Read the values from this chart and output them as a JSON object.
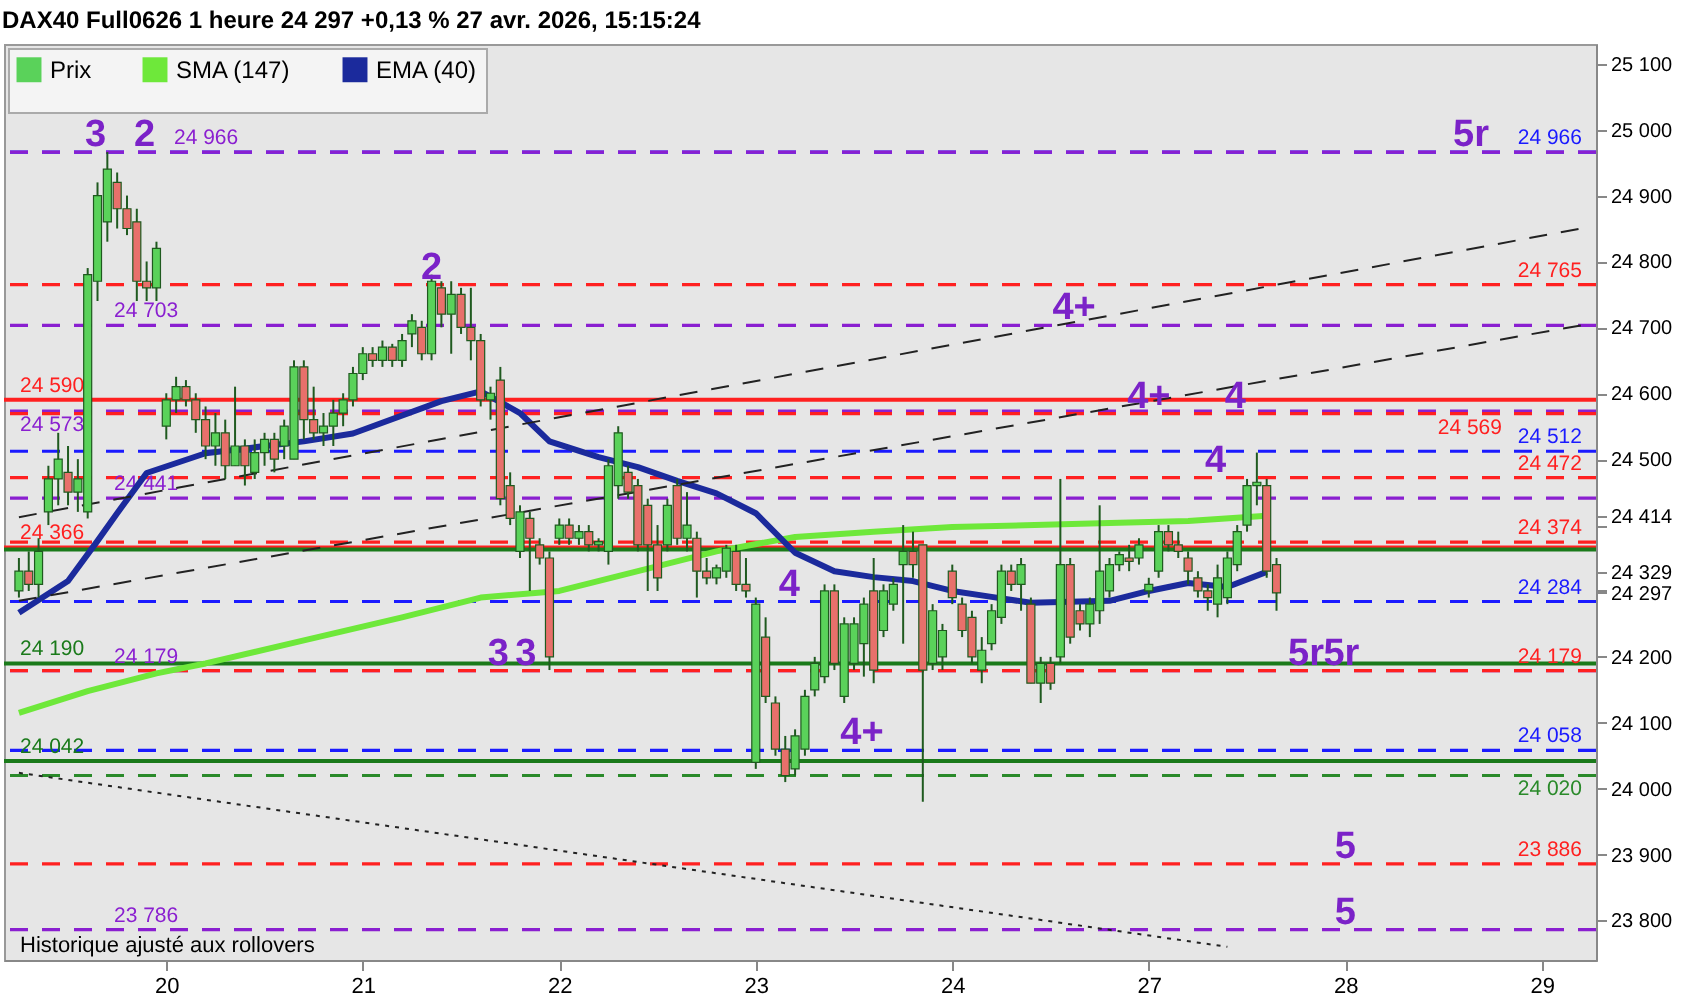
{
  "chart_data": {
    "type": "candlestick",
    "title": "DAX40 Full0626 1 heure 24 297 +0,13 % 27 avr. 2026, 15:15:24",
    "ylim": [
      23740,
      25130
    ],
    "categories": [
      null,
      null,
      null,
      null,
      null,
      null,
      null,
      null,
      null,
      null,
      null,
      null,
      null,
      null,
      null,
      "20",
      null,
      null,
      null,
      null,
      null,
      null,
      null,
      null,
      null,
      null,
      null,
      null,
      null,
      null,
      null,
      null,
      null,
      null,
      null,
      "21",
      null,
      null,
      null,
      null,
      null,
      null,
      null,
      null,
      null,
      null,
      null,
      null,
      null,
      null,
      null,
      null,
      null,
      null,
      null,
      "22",
      null,
      null,
      null,
      null,
      null,
      null,
      null,
      null,
      null,
      null,
      null,
      null,
      null,
      null,
      null,
      null,
      null,
      null,
      null,
      "23",
      null,
      null,
      null,
      null,
      null,
      null,
      null,
      null,
      null,
      null,
      null,
      null,
      null,
      null,
      null,
      null,
      null,
      null,
      null,
      "24",
      null,
      null,
      null,
      null,
      null,
      null,
      null,
      null,
      null,
      null,
      null,
      null,
      null,
      null,
      null,
      null,
      null,
      null,
      null,
      "27",
      null,
      null,
      null,
      null,
      null,
      null,
      null,
      null,
      null,
      null,
      null,
      null,
      null,
      null,
      null,
      null,
      null,
      null,
      null,
      "28",
      null,
      null,
      null,
      null,
      null,
      null,
      null,
      null,
      null,
      null,
      null,
      null,
      null,
      null,
      null,
      null,
      null,
      null,
      null,
      "29",
      null,
      null,
      null,
      null
    ],
    "yticks": [
      {
        "value": 23800,
        "label": "23 800"
      },
      {
        "value": 23900,
        "label": "23 900"
      },
      {
        "value": 24000,
        "label": "24 000"
      },
      {
        "value": 24100,
        "label": "24 100"
      },
      {
        "value": 24200,
        "label": "24 200"
      },
      {
        "value": 24297,
        "label": "24 297"
      },
      {
        "value": 24300,
        "label": null
      },
      {
        "value": 24329,
        "label": "24 329"
      },
      {
        "value": 24400,
        "label": null
      },
      {
        "value": 24414,
        "label": "24 414"
      },
      {
        "value": 24500,
        "label": "24 500"
      },
      {
        "value": 24600,
        "label": "24 600"
      },
      {
        "value": 24700,
        "label": "24 700"
      },
      {
        "value": 24800,
        "label": "24 800"
      },
      {
        "value": 24900,
        "label": "24 900"
      },
      {
        "value": 25000,
        "label": "25 000"
      },
      {
        "value": 25100,
        "label": "25 100"
      }
    ],
    "grid": false,
    "legend": "top left",
    "series": [
      {
        "name": "Prix",
        "colors": [
          "#5ad25a",
          "#e8706b",
          "#5ad25a",
          "#5ad25a",
          "#5ad25a",
          "#e8706b",
          "#5ad25a",
          "#5ad25a",
          "#5ad25a",
          "#5ad25a",
          "#e8706b",
          "#e8706b",
          "#e8706b",
          "#e8706b",
          "#5ad25a",
          "#5ad25a",
          "#5ad25a",
          "#e8706b",
          "#e8706b",
          "#e8706b",
          "#5ad25a",
          "#e8706b",
          "#5ad25a",
          "#e8706b",
          "#5ad25a",
          "#5ad25a",
          "#e8706b",
          "#5ad25a",
          "#5ad25a",
          "#e8706b",
          "#e8706b",
          "#5ad25a",
          "#5ad25a",
          "#5ad25a",
          "#5ad25a",
          "#5ad25a",
          "#e8706b",
          "#5ad25a",
          "#e8706b",
          "#5ad25a",
          "#5ad25a",
          "#e8706b",
          "#5ad25a",
          "#e8706b",
          "#5ad25a",
          "#e8706b",
          "#e8706b",
          "#e8706b",
          "#5ad25a",
          "#e8706b",
          "#e8706b",
          "#5ad25a",
          "#e8706b",
          "#e8706b",
          "#e8706b",
          "#5ad25a",
          "#e8706b",
          "#5ad25a",
          "#e8706b",
          "#5ad25a",
          "#5ad25a",
          "#5ad25a",
          "#e8706b",
          "#e8706b",
          "#e8706b",
          "#e8706b",
          "#5ad25a",
          "#e8706b",
          "#5ad25a",
          "#e8706b",
          "#e8706b",
          "#5ad25a",
          "#5ad25a",
          "#e8706b",
          "#e8706b",
          "#5ad25a",
          "#e8706b",
          "#e8706b",
          "#e8706b",
          "#5ad25a",
          "#5ad25a",
          "#5ad25a",
          "#5ad25a",
          "#e8706b",
          "#5ad25a",
          "#5ad25a",
          "#5ad25a",
          "#e8706b",
          "#5ad25a",
          "#5ad25a",
          "#5ad25a",
          "#e8706b",
          "#e8706b",
          "#5ad25a",
          "#5ad25a",
          "#e8706b",
          "#e8706b",
          "#e8706b",
          "#5ad25a",
          "#5ad25a",
          "#5ad25a",
          "#e8706b",
          "#5ad25a",
          "#e8706b",
          "#5ad25a",
          "#e8706b",
          "#5ad25a",
          "#e8706b",
          "#e8706b",
          "#5ad25a",
          "#5ad25a",
          "#5ad25a",
          "#5ad25a",
          "#e8706b",
          "#5ad25a",
          "#5ad25a",
          "#5ad25a",
          "#e8706b",
          "#e8706b",
          "#e8706b",
          "#e8706b",
          "#e8706b",
          "#5ad25a",
          "#5ad25a",
          "#5ad25a",
          "#5ad25a",
          "#5ad25a",
          "#e8706b",
          "#e8706b",
          null,
          null,
          null,
          null,
          null,
          null,
          null,
          null,
          null,
          null,
          null,
          null,
          null,
          null,
          null,
          null,
          null,
          null,
          null,
          null,
          null,
          null,
          null,
          null,
          null,
          null,
          null,
          null,
          null,
          null,
          null
        ],
        "ohlc": [
          [
            24300,
            24350,
            24290,
            24330
          ],
          [
            24330,
            24360,
            24300,
            24310
          ],
          [
            24310,
            24380,
            24290,
            24360
          ],
          [
            24420,
            24490,
            24400,
            24470
          ],
          [
            24470,
            24540,
            24430,
            24500
          ],
          [
            24480,
            24520,
            24430,
            24450
          ],
          [
            24450,
            24500,
            24420,
            24470
          ],
          [
            24420,
            24790,
            24410,
            24780
          ],
          [
            24770,
            24920,
            24740,
            24900
          ],
          [
            24860,
            24966,
            24830,
            24940
          ],
          [
            24920,
            24935,
            24850,
            24880
          ],
          [
            24880,
            24900,
            24840,
            24850
          ],
          [
            24860,
            24880,
            24740,
            24770
          ],
          [
            24770,
            24800,
            24740,
            24760
          ],
          [
            24760,
            24830,
            24740,
            24820
          ],
          [
            24550,
            24600,
            24530,
            24590
          ],
          [
            24590,
            24625,
            24570,
            24610
          ],
          [
            24610,
            24620,
            24580,
            24590
          ],
          [
            24590,
            24600,
            24540,
            24560
          ],
          [
            24560,
            24580,
            24500,
            24520
          ],
          [
            24520,
            24570,
            24490,
            24540
          ],
          [
            24540,
            24560,
            24470,
            24490
          ],
          [
            24490,
            24610,
            24490,
            24520
          ],
          [
            24520,
            24530,
            24460,
            24490
          ],
          [
            24480,
            24530,
            24470,
            24510
          ],
          [
            24510,
            24540,
            24490,
            24530
          ],
          [
            24530,
            24540,
            24480,
            24500
          ],
          [
            24520,
            24560,
            24500,
            24550
          ],
          [
            24500,
            24650,
            24500,
            24640
          ],
          [
            24640,
            24650,
            24530,
            24560
          ],
          [
            24560,
            24610,
            24530,
            24540
          ],
          [
            24540,
            24570,
            24520,
            24550
          ],
          [
            24550,
            24590,
            24520,
            24570
          ],
          [
            24570,
            24600,
            24550,
            24590
          ],
          [
            24590,
            24640,
            24580,
            24630
          ],
          [
            24630,
            24670,
            24620,
            24660
          ],
          [
            24660,
            24670,
            24640,
            24650
          ],
          [
            24650,
            24680,
            24640,
            24670
          ],
          [
            24670,
            24675,
            24640,
            24650
          ],
          [
            24650,
            24690,
            24640,
            24680
          ],
          [
            24690,
            24720,
            24670,
            24710
          ],
          [
            24700,
            24710,
            24650,
            24660
          ],
          [
            24660,
            24780,
            24650,
            24770
          ],
          [
            24760,
            24770,
            24700,
            24720
          ],
          [
            24720,
            24770,
            24660,
            24750
          ],
          [
            24750,
            24760,
            24690,
            24700
          ],
          [
            24700,
            24760,
            24650,
            24680
          ],
          [
            24680,
            24690,
            24580,
            24590
          ],
          [
            24590,
            24610,
            24560,
            24600
          ],
          [
            24620,
            24640,
            24430,
            24440
          ],
          [
            24460,
            24480,
            24400,
            24410
          ],
          [
            24360,
            24430,
            24350,
            24420
          ],
          [
            24410,
            24420,
            24300,
            24380
          ],
          [
            24370,
            24380,
            24340,
            24350
          ],
          [
            24350,
            24360,
            24180,
            24200
          ],
          [
            24380,
            24410,
            24370,
            24400
          ],
          [
            24400,
            24410,
            24370,
            24380
          ],
          [
            24380,
            24400,
            24370,
            24390
          ],
          [
            24390,
            24400,
            24360,
            24370
          ],
          [
            24370,
            24380,
            24360,
            24375
          ],
          [
            24360,
            24500,
            24340,
            24490
          ],
          [
            24460,
            24550,
            24440,
            24540
          ],
          [
            24480,
            24490,
            24440,
            24450
          ],
          [
            24460,
            24470,
            24360,
            24370
          ],
          [
            24430,
            24440,
            24300,
            24370
          ],
          [
            24370,
            24400,
            24300,
            24320
          ],
          [
            24370,
            24440,
            24360,
            24430
          ],
          [
            24460,
            24470,
            24370,
            24380
          ],
          [
            24380,
            24450,
            24360,
            24400
          ],
          [
            24380,
            24390,
            24290,
            24330
          ],
          [
            24330,
            24350,
            24310,
            24320
          ],
          [
            24320,
            24340,
            24310,
            24335
          ],
          [
            24330,
            24370,
            24320,
            24365
          ],
          [
            24360,
            24370,
            24300,
            24310
          ],
          [
            24310,
            24350,
            24290,
            24300
          ],
          [
            24040,
            24290,
            24030,
            24280
          ],
          [
            24230,
            24260,
            24130,
            24140
          ],
          [
            24130,
            24140,
            24050,
            24060
          ],
          [
            24060,
            24080,
            24010,
            24020
          ],
          [
            24030,
            24090,
            24020,
            24080
          ],
          [
            24060,
            24150,
            24050,
            24140
          ],
          [
            24150,
            24200,
            24140,
            24190
          ],
          [
            24170,
            24310,
            24160,
            24300
          ],
          [
            24300,
            24310,
            24180,
            24190
          ],
          [
            24140,
            24260,
            24130,
            24250
          ],
          [
            24190,
            24260,
            24180,
            24250
          ],
          [
            24220,
            24290,
            24170,
            24280
          ],
          [
            24300,
            24350,
            24160,
            24180
          ],
          [
            24240,
            24310,
            24230,
            24300
          ],
          [
            24280,
            24320,
            24270,
            24310
          ],
          [
            24340,
            24400,
            24220,
            24360
          ],
          [
            24360,
            24390,
            24320,
            24340
          ],
          [
            24370,
            24370,
            23980,
            24180
          ],
          [
            24190,
            24280,
            24180,
            24270
          ],
          [
            24200,
            24250,
            24180,
            24240
          ],
          [
            24330,
            24340,
            24280,
            24290
          ],
          [
            24280,
            24290,
            24230,
            24240
          ],
          [
            24260,
            24270,
            24190,
            24200
          ],
          [
            24180,
            24230,
            24160,
            24210
          ],
          [
            24220,
            24280,
            24210,
            24270
          ],
          [
            24260,
            24340,
            24250,
            24330
          ],
          [
            24330,
            24340,
            24300,
            24310
          ],
          [
            24310,
            24350,
            24270,
            24340
          ],
          [
            24280,
            24290,
            24160,
            24160
          ],
          [
            24160,
            24200,
            24130,
            24190
          ],
          [
            24190,
            24200,
            24150,
            24160
          ],
          [
            24200,
            24470,
            24190,
            24340
          ],
          [
            24340,
            24350,
            24220,
            24230
          ],
          [
            24270,
            24280,
            24240,
            24250
          ],
          [
            24250,
            24290,
            24230,
            24280
          ],
          [
            24270,
            24430,
            24250,
            24330
          ],
          [
            24300,
            24350,
            24290,
            24340
          ],
          [
            24340,
            24360,
            24330,
            24355
          ],
          [
            24350,
            24370,
            24330,
            24345
          ],
          [
            24350,
            24380,
            24340,
            24370
          ],
          [
            24300,
            24320,
            24290,
            24310
          ],
          [
            24330,
            24400,
            24320,
            24390
          ],
          [
            24390,
            24400,
            24360,
            24370
          ],
          [
            24370,
            24390,
            24350,
            24360
          ],
          [
            24350,
            24360,
            24310,
            24330
          ],
          [
            24320,
            24330,
            24290,
            24300
          ],
          [
            24300,
            24310,
            24270,
            24290
          ],
          [
            24280,
            24340,
            24260,
            24320
          ],
          [
            24290,
            24360,
            24280,
            24350
          ],
          [
            24340,
            24400,
            24330,
            24390
          ],
          [
            24400,
            24470,
            24390,
            24460
          ],
          [
            24460,
            24510,
            24430,
            24465
          ],
          [
            24460,
            24470,
            24320,
            24330
          ],
          [
            24340,
            24350,
            24270,
            24297
          ],
          null,
          null,
          null,
          null,
          null,
          null,
          null,
          null,
          null,
          null,
          null,
          null,
          null,
          null,
          null,
          null,
          null,
          null,
          null,
          null,
          null,
          null,
          null,
          null,
          null,
          null,
          null,
          null,
          null,
          null,
          null
        ]
      },
      {
        "name": "SMA (147)",
        "type": "line",
        "color": "#6ee83a",
        "values": [
          24115,
          null,
          null,
          null,
          null,
          null,
          null,
          24148,
          null,
          null,
          null,
          null,
          null,
          null,
          24175,
          null,
          null,
          null,
          null,
          24190,
          null,
          null,
          null,
          null,
          null,
          null,
          null,
          null,
          null,
          24225,
          null,
          null,
          null,
          null,
          null,
          null,
          null,
          null,
          null,
          24260,
          null,
          null,
          null,
          null,
          null,
          null,
          null,
          24290,
          null,
          null,
          null,
          null,
          null,
          null,
          null,
          24300,
          null,
          null,
          null,
          null,
          null,
          null,
          null,
          24330,
          null,
          null,
          null,
          null,
          null,
          null,
          null,
          24360,
          null,
          null,
          null,
          null,
          null,
          null,
          null,
          24382,
          null,
          null,
          null,
          null,
          null,
          null,
          null,
          24390,
          null,
          null,
          null,
          null,
          null,
          null,
          null,
          24397,
          null,
          null,
          null,
          null,
          null,
          null,
          null,
          null,
          null,
          null,
          null,
          null,
          null,
          null,
          null,
          24403,
          null,
          null,
          null,
          null,
          null,
          null,
          null,
          24406,
          null,
          null,
          null,
          null,
          null,
          null,
          null,
          24414,
          null,
          null,
          null,
          null,
          null,
          null,
          null,
          null,
          null,
          null,
          null,
          null,
          null,
          null,
          null,
          null,
          null,
          null,
          null,
          null,
          null,
          null,
          null,
          null,
          null,
          null,
          null,
          null,
          null,
          null,
          null,
          null
        ]
      },
      {
        "name": "EMA (40)",
        "type": "line",
        "color": "#1b2a9c",
        "values": [
          24267,
          null,
          null,
          null,
          null,
          24315,
          null,
          null,
          24376,
          null,
          24418,
          null,
          null,
          24479,
          null,
          null,
          null,
          null,
          null,
          24509,
          null,
          null,
          null,
          null,
          null,
          null,
          null,
          null,
          null,
          24527,
          null,
          null,
          null,
          null,
          24539,
          null,
          null,
          null,
          null,
          null,
          null,
          null,
          null,
          24588,
          null,
          null,
          null,
          24603,
          null,
          null,
          null,
          24570,
          null,
          null,
          24527,
          null,
          null,
          null,
          null,
          24503,
          null,
          null,
          null,
          24488,
          null,
          null,
          null,
          24467,
          null,
          null,
          null,
          24448,
          null,
          null,
          null,
          24418,
          null,
          null,
          null,
          24358,
          null,
          null,
          null,
          24330,
          null,
          null,
          null,
          24321,
          null,
          null,
          null,
          24315,
          null,
          null,
          null,
          24300,
          null,
          null,
          null,
          24291,
          null,
          null,
          null,
          24282,
          null,
          null,
          null,
          null,
          null,
          null,
          null,
          24285,
          null,
          null,
          null,
          24300,
          null,
          null,
          null,
          24312,
          null,
          null,
          null,
          24306,
          null,
          null,
          null,
          24329,
          null,
          null,
          null,
          null,
          null,
          null,
          null,
          null,
          null,
          null,
          null,
          null,
          null,
          null,
          null,
          null,
          null,
          null,
          null,
          null,
          null,
          null,
          null,
          null,
          null,
          null,
          null,
          null,
          null,
          null,
          null,
          null
        ]
      },
      {
        "type": "line",
        "color": "#222222",
        "line_style": "dashed",
        "values": [
          24412,
          null,
          null,
          null,
          null,
          null,
          null,
          null,
          null,
          null,
          null,
          null,
          null,
          null,
          null,
          null,
          null,
          null,
          null,
          null,
          null,
          null,
          null,
          null,
          null,
          null,
          null,
          null,
          null,
          null,
          null,
          null,
          null,
          null,
          null,
          null,
          null,
          null,
          null,
          null,
          null,
          null,
          null,
          null,
          null,
          null,
          null,
          null,
          null,
          null,
          null,
          null,
          null,
          null,
          null,
          null,
          null,
          null,
          null,
          null,
          null,
          null,
          null,
          null,
          null,
          null,
          null,
          null,
          null,
          null,
          null,
          null,
          null,
          null,
          null,
          null,
          null,
          null,
          null,
          null,
          null,
          null,
          null,
          null,
          null,
          null,
          null,
          null,
          null,
          null,
          null,
          null,
          null,
          null,
          null,
          null,
          null,
          null,
          null,
          null,
          null,
          null,
          null,
          null,
          null,
          null,
          null,
          null,
          null,
          null,
          null,
          null,
          null,
          null,
          null,
          null,
          null,
          null,
          null,
          null,
          null,
          null,
          null,
          null,
          null,
          null,
          null,
          null,
          null,
          null,
          null,
          null,
          null,
          null,
          null,
          null,
          null,
          null,
          null,
          null,
          null,
          null,
          null,
          null,
          null,
          null,
          null,
          null,
          null,
          null,
          null,
          null,
          null,
          null,
          null,
          null,
          null,
          null,
          null,
          24850
        ]
      },
      {
        "type": "line",
        "color": "#222222",
        "line_style": "dashed",
        "values": [
          24285,
          null,
          null,
          null,
          null,
          null,
          null,
          null,
          null,
          null,
          null,
          null,
          null,
          null,
          null,
          null,
          null,
          null,
          null,
          null,
          null,
          null,
          null,
          null,
          null,
          null,
          null,
          null,
          null,
          null,
          null,
          null,
          null,
          null,
          null,
          null,
          null,
          null,
          null,
          null,
          null,
          null,
          null,
          null,
          null,
          null,
          null,
          null,
          null,
          null,
          null,
          null,
          null,
          null,
          null,
          null,
          null,
          null,
          null,
          null,
          null,
          null,
          null,
          null,
          null,
          null,
          null,
          null,
          null,
          null,
          null,
          null,
          null,
          null,
          null,
          null,
          null,
          null,
          null,
          null,
          null,
          null,
          null,
          null,
          null,
          null,
          null,
          null,
          null,
          null,
          null,
          null,
          null,
          null,
          null,
          null,
          null,
          null,
          null,
          null,
          null,
          null,
          null,
          null,
          null,
          null,
          null,
          null,
          null,
          null,
          null,
          null,
          null,
          null,
          null,
          null,
          null,
          null,
          null,
          null,
          null,
          null,
          null,
          null,
          null,
          null,
          null,
          null,
          null,
          null,
          null,
          null,
          null,
          null,
          null,
          null,
          null,
          null,
          null,
          null,
          null,
          null,
          null,
          null,
          null,
          null,
          null,
          null,
          null,
          null,
          null,
          null,
          null,
          null,
          null,
          null,
          null,
          null,
          null,
          24703
        ]
      },
      {
        "type": "line",
        "color": "#222222",
        "line_style": "dotted",
        "values": [
          24024,
          null,
          null,
          null,
          null,
          null,
          null,
          null,
          null,
          null,
          null,
          null,
          null,
          null,
          null,
          null,
          null,
          null,
          null,
          null,
          null,
          null,
          null,
          null,
          null,
          null,
          null,
          null,
          null,
          null,
          null,
          null,
          null,
          null,
          null,
          null,
          null,
          null,
          null,
          null,
          null,
          null,
          null,
          null,
          null,
          null,
          null,
          null,
          null,
          null,
          null,
          null,
          null,
          null,
          null,
          null,
          null,
          null,
          null,
          null,
          null,
          null,
          null,
          null,
          null,
          null,
          null,
          null,
          null,
          null,
          null,
          null,
          null,
          null,
          null,
          null,
          null,
          null,
          null,
          null,
          null,
          null,
          null,
          null,
          null,
          null,
          null,
          null,
          null,
          null,
          null,
          null,
          null,
          null,
          null,
          null,
          null,
          null,
          null,
          null,
          null,
          null,
          null,
          null,
          null,
          null,
          null,
          null,
          null,
          null,
          null,
          null,
          null,
          null,
          null,
          null,
          null,
          null,
          null,
          null,
          null,
          null,
          null,
          23760,
          null,
          null,
          null,
          null,
          null,
          null,
          null,
          null,
          null,
          null,
          null,
          null,
          null,
          null,
          null,
          null,
          null,
          null,
          null,
          null,
          null,
          null,
          null,
          null,
          null,
          null,
          null,
          null,
          null,
          null,
          null,
          null,
          null,
          null,
          null,
          null
        ]
      }
    ],
    "ref_lines": [
      {
        "axis": "y",
        "value": 24966,
        "label": "24 966",
        "color": "#1a1aff",
        "line_style": "dashed"
      },
      {
        "axis": "y",
        "value": 24765,
        "label": "24 765",
        "color": "#ff2020",
        "line_style": "dashed"
      },
      {
        "axis": "y",
        "value": 24703,
        "label": "24 703",
        "color": "#8a1fd0",
        "line_style": "dashed"
      },
      {
        "axis": "y",
        "value": 24590,
        "label": "24 590",
        "color": "#ff2020",
        "line_style": "solid"
      },
      {
        "axis": "y",
        "value": 24573,
        "label": "24 573",
        "color": "#8a1fd0",
        "line_style": "dashed"
      },
      {
        "axis": "y",
        "value": 24569,
        "label": "24 569",
        "color": "#ff2020",
        "line_style": "dashed"
      },
      {
        "axis": "y",
        "value": 24512,
        "label": "24 512",
        "color": "#1a1aff",
        "line_style": "dashed"
      },
      {
        "axis": "y",
        "value": 24472,
        "label": "24 472",
        "color": "#ff2020",
        "line_style": "dashed"
      },
      {
        "axis": "y",
        "value": 24441,
        "label": "24 441",
        "color": "#8a1fd0",
        "line_style": "dashed"
      },
      {
        "axis": "y",
        "value": 24374,
        "label": "24 374",
        "color": "#ff2020",
        "line_style": "dashed"
      },
      {
        "axis": "y",
        "value": 24366,
        "label": "24 366",
        "color": "#ff2020",
        "line_style": "solid"
      },
      {
        "axis": "y",
        "value": 24363,
        "label": null,
        "color": "#1a7a1a",
        "line_style": "solid"
      },
      {
        "axis": "y",
        "value": 24284,
        "label": "24 284",
        "color": "#1a1aff",
        "line_style": "dashed"
      },
      {
        "axis": "y",
        "value": 24190,
        "label": "24 190",
        "color": "#1a7a1a",
        "line_style": "solid"
      },
      {
        "axis": "y",
        "value": 24179,
        "label": "24 179",
        "color": "#8a1fd0",
        "line_style": "dashed"
      },
      {
        "axis": "y",
        "value": 24179,
        "label": "24 179",
        "color": "#ff2020",
        "line_style": "dashed"
      },
      {
        "axis": "y",
        "value": 24058,
        "label": "24 058",
        "color": "#1a1aff",
        "line_style": "dashed"
      },
      {
        "axis": "y",
        "value": 24042,
        "label": "24 042",
        "color": "#1a7a1a",
        "line_style": "solid"
      },
      {
        "axis": "y",
        "value": 24020,
        "label": "24 020",
        "color": "#2a8a2a",
        "line_style": "dashed"
      },
      {
        "axis": "y",
        "value": 23886,
        "label": "23 886",
        "color": "#ff2020",
        "line_style": "dashed"
      },
      {
        "axis": "y",
        "value": 23786,
        "label": "23 786",
        "color": "#8a1fd0",
        "line_style": "dashed"
      },
      {
        "axis": "y",
        "value": 24966,
        "label": "24 966",
        "color": "#8a1fd0",
        "line_style": "dashed"
      }
    ],
    "annotations": [
      {
        "text": "3",
        "y": 24966
      },
      {
        "text": "2",
        "y": 24966
      },
      {
        "text": "2",
        "y": 24765
      },
      {
        "text": "3",
        "y": 24179
      },
      {
        "text": "3",
        "y": 24179
      },
      {
        "text": "4",
        "y": 24284
      },
      {
        "text": "4+",
        "y": 24058
      },
      {
        "text": "4+",
        "y": 24703
      },
      {
        "text": "4+",
        "y": 24569
      },
      {
        "text": "4",
        "y": 24569
      },
      {
        "text": "4",
        "y": 24472
      },
      {
        "text": "5r",
        "y": 24179
      },
      {
        "text": "5r",
        "y": 24179
      },
      {
        "text": "5r",
        "y": 24966
      },
      {
        "text": "5",
        "y": 23886
      },
      {
        "text": "5",
        "y": 23786
      },
      "Historique ajusté aux rollovers"
    ]
  }
}
